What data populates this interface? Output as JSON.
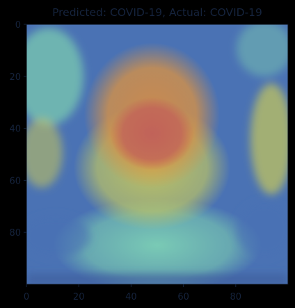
{
  "chart_data": {
    "type": "heatmap",
    "title": "Predicted: COVID-19, Actual: COVID-19",
    "xlabel": "",
    "ylabel": "",
    "xlim": [
      0,
      100
    ],
    "ylim": [
      100,
      0
    ],
    "x_ticks": [
      "0",
      "20",
      "40",
      "60",
      "80"
    ],
    "x_tick_values": [
      0,
      20,
      40,
      60,
      80
    ],
    "y_ticks": [
      "0",
      "20",
      "40",
      "60",
      "80"
    ],
    "y_tick_values": [
      0,
      20,
      40,
      60,
      80
    ],
    "colormap": "jet overlay on chest X-ray",
    "colors": {
      "background": "#000000",
      "text": "#15233c",
      "low": "#4a72b4",
      "mid_low": "#74c0b0",
      "mid": "#c8c95a",
      "mid_high": "#d59147",
      "high": "#c0605a"
    },
    "activation_regions": [
      {
        "level": "high",
        "center": [
          48,
          42
        ],
        "radius": [
          16,
          14
        ]
      },
      {
        "level": "mid_high",
        "center": [
          48,
          35
        ],
        "radius": [
          26,
          28
        ]
      },
      {
        "level": "mid",
        "center": [
          48,
          55
        ],
        "radius": [
          30,
          24
        ]
      },
      {
        "level": "mid_low",
        "center": [
          50,
          85
        ],
        "radius": [
          40,
          18
        ]
      }
    ]
  }
}
